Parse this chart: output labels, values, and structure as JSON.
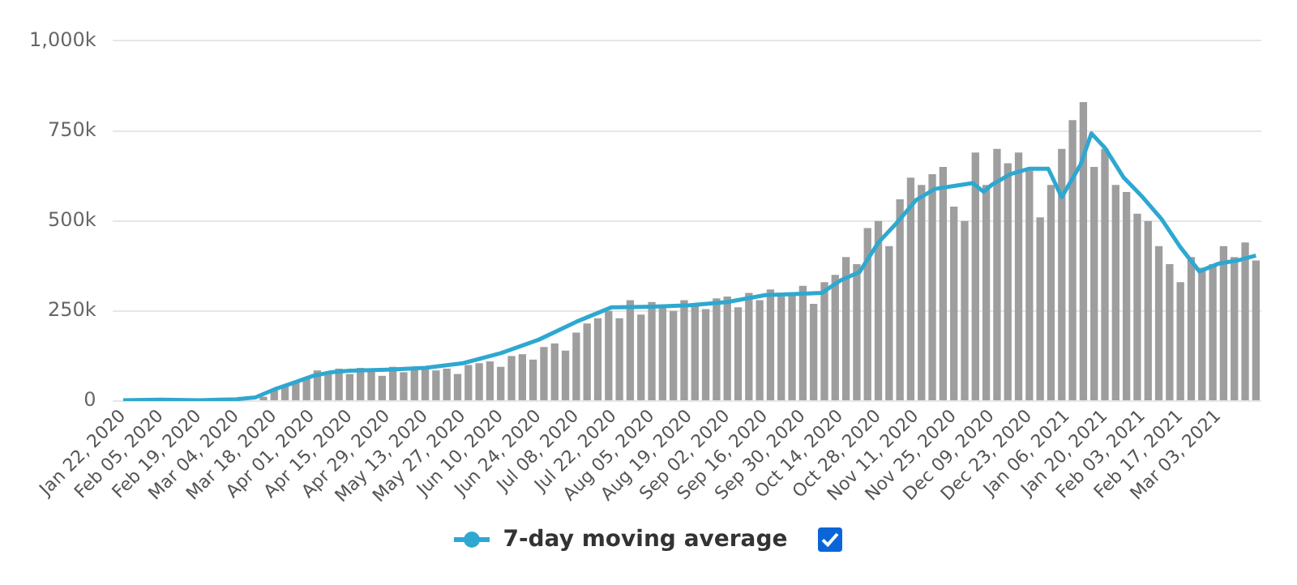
{
  "chart_data": {
    "type": "bar",
    "xlim": [
      "2020-01-18",
      "2021-03-19"
    ],
    "xticks": [
      {
        "value": "2020-01-22",
        "label": "Jan 22, 2020"
      },
      {
        "value": "2020-02-05",
        "label": "Feb 05, 2020"
      },
      {
        "value": "2020-02-19",
        "label": "Feb 19, 2020"
      },
      {
        "value": "2020-03-04",
        "label": "Mar 04, 2020"
      },
      {
        "value": "2020-03-18",
        "label": "Mar 18, 2020"
      },
      {
        "value": "2020-04-01",
        "label": "Apr 01, 2020"
      },
      {
        "value": "2020-04-15",
        "label": "Apr 15, 2020"
      },
      {
        "value": "2020-04-29",
        "label": "Apr 29, 2020"
      },
      {
        "value": "2020-05-13",
        "label": "May 13, 2020"
      },
      {
        "value": "2020-05-27",
        "label": "May 27, 2020"
      },
      {
        "value": "2020-06-10",
        "label": "Jun 10, 2020"
      },
      {
        "value": "2020-06-24",
        "label": "Jun 24, 2020"
      },
      {
        "value": "2020-07-08",
        "label": "Jul 08, 2020"
      },
      {
        "value": "2020-07-22",
        "label": "Jul 22, 2020"
      },
      {
        "value": "2020-08-05",
        "label": "Aug 05, 2020"
      },
      {
        "value": "2020-08-19",
        "label": "Aug 19, 2020"
      },
      {
        "value": "2020-09-02",
        "label": "Sep 02, 2020"
      },
      {
        "value": "2020-09-16",
        "label": "Sep 16, 2020"
      },
      {
        "value": "2020-09-30",
        "label": "Sep 30, 2020"
      },
      {
        "value": "2020-10-14",
        "label": "Oct 14, 2020"
      },
      {
        "value": "2020-10-28",
        "label": "Oct 28, 2020"
      },
      {
        "value": "2020-11-11",
        "label": "Nov 11, 2020"
      },
      {
        "value": "2020-11-25",
        "label": "Nov 25, 2020"
      },
      {
        "value": "2020-12-09",
        "label": "Dec 09, 2020"
      },
      {
        "value": "2020-12-23",
        "label": "Dec 23, 2020"
      },
      {
        "value": "2021-01-06",
        "label": "Jan 06, 2021"
      },
      {
        "value": "2021-01-20",
        "label": "Jan 20, 2021"
      },
      {
        "value": "2021-02-03",
        "label": "Feb 03, 2021"
      },
      {
        "value": "2021-02-17",
        "label": "Feb 17, 2021"
      },
      {
        "value": "2021-03-03",
        "label": "Mar 03, 2021"
      }
    ],
    "ylim": [
      0,
      1000000
    ],
    "yticks": [
      {
        "value": 0,
        "label": "0"
      },
      {
        "value": 250000,
        "label": "250k"
      },
      {
        "value": 500000,
        "label": "500k"
      },
      {
        "value": 750000,
        "label": "750k"
      },
      {
        "value": 1000000,
        "label": "1,000k"
      }
    ],
    "grid": "y",
    "legend": "bottom",
    "marker": "none",
    "line_style": "solid",
    "series": [
      {
        "color": "#9e9e9e",
        "x": [
          "2020-01-22",
          "2020-01-26",
          "2020-01-30",
          "2020-02-03",
          "2020-02-07",
          "2020-02-11",
          "2020-02-15",
          "2020-02-19",
          "2020-02-23",
          "2020-02-27",
          "2020-03-02",
          "2020-03-06",
          "2020-03-10",
          "2020-03-14",
          "2020-03-18",
          "2020-03-22",
          "2020-03-26",
          "2020-03-30",
          "2020-04-03",
          "2020-04-07",
          "2020-04-11",
          "2020-04-15",
          "2020-04-19",
          "2020-04-23",
          "2020-04-27",
          "2020-05-01",
          "2020-05-05",
          "2020-05-09",
          "2020-05-13",
          "2020-05-17",
          "2020-05-21",
          "2020-05-25",
          "2020-05-29",
          "2020-06-02",
          "2020-06-06",
          "2020-06-10",
          "2020-06-14",
          "2020-06-18",
          "2020-06-22",
          "2020-06-26",
          "2020-06-30",
          "2020-07-04",
          "2020-07-08",
          "2020-07-12",
          "2020-07-16",
          "2020-07-20",
          "2020-07-24",
          "2020-07-28",
          "2020-08-01",
          "2020-08-05",
          "2020-08-09",
          "2020-08-13",
          "2020-08-17",
          "2020-08-21",
          "2020-08-25",
          "2020-08-29",
          "2020-09-02",
          "2020-09-06",
          "2020-09-10",
          "2020-09-14",
          "2020-09-18",
          "2020-09-22",
          "2020-09-26",
          "2020-09-30",
          "2020-10-04",
          "2020-10-08",
          "2020-10-12",
          "2020-10-16",
          "2020-10-20",
          "2020-10-24",
          "2020-10-28",
          "2020-11-01",
          "2020-11-05",
          "2020-11-09",
          "2020-11-13",
          "2020-11-17",
          "2020-11-21",
          "2020-11-25",
          "2020-11-29",
          "2020-12-03",
          "2020-12-07",
          "2020-12-11",
          "2020-12-15",
          "2020-12-19",
          "2020-12-23",
          "2020-12-27",
          "2020-12-31",
          "2021-01-04",
          "2021-01-08",
          "2021-01-12",
          "2021-01-16",
          "2021-01-20",
          "2021-01-24",
          "2021-01-28",
          "2021-02-01",
          "2021-02-05",
          "2021-02-09",
          "2021-02-13",
          "2021-02-17",
          "2021-02-21",
          "2021-02-25",
          "2021-03-01",
          "2021-03-05",
          "2021-03-09",
          "2021-03-13",
          "2021-03-17"
        ],
        "values": [
          2000,
          3000,
          4000,
          5000,
          5000,
          5000,
          4000,
          3000,
          3000,
          2000,
          2000,
          4000,
          null,
          12000,
          30000,
          45000,
          55000,
          65000,
          85000,
          80000,
          90000,
          75000,
          92000,
          85000,
          70000,
          95000,
          80000,
          88000,
          95000,
          85000,
          90000,
          75000,
          100000,
          105000,
          110000,
          95000,
          125000,
          130000,
          115000,
          150000,
          160000,
          140000,
          190000,
          215000,
          230000,
          250000,
          230000,
          280000,
          240000,
          275000,
          265000,
          250000,
          280000,
          270000,
          255000,
          285000,
          290000,
          260000,
          300000,
          280000,
          310000,
          290000,
          300000,
          320000,
          270000,
          330000,
          350000,
          400000,
          380000,
          480000,
          500000,
          430000,
          560000,
          620000,
          600000,
          630000,
          650000,
          540000,
          500000,
          690000,
          600000,
          700000,
          660000,
          690000,
          640000,
          510000,
          600000,
          700000,
          780000,
          830000,
          650000,
          700000,
          600000,
          580000,
          520000,
          500000,
          430000,
          380000,
          330000,
          400000,
          370000,
          380000,
          430000,
          400000,
          440000,
          390000
        ]
      },
      {
        "type": "line",
        "name": "7-day moving average",
        "color": "#2ea8d0",
        "x": [
          "2020-01-22",
          "2020-02-05",
          "2020-02-19",
          "2020-03-04",
          "2020-03-11",
          "2020-03-18",
          "2020-03-25",
          "2020-04-01",
          "2020-04-08",
          "2020-04-15",
          "2020-04-29",
          "2020-05-13",
          "2020-05-27",
          "2020-06-10",
          "2020-06-24",
          "2020-07-08",
          "2020-07-21",
          "2020-08-05",
          "2020-08-19",
          "2020-09-02",
          "2020-09-16",
          "2020-09-30",
          "2020-10-07",
          "2020-10-14",
          "2020-10-21",
          "2020-10-28",
          "2020-11-04",
          "2020-11-11",
          "2020-11-18",
          "2020-11-25",
          "2020-12-02",
          "2020-12-06",
          "2020-12-09",
          "2020-12-16",
          "2020-12-23",
          "2020-12-30",
          "2021-01-04",
          "2021-01-11",
          "2021-01-15",
          "2021-01-20",
          "2021-01-27",
          "2021-02-03",
          "2021-02-10",
          "2021-02-17",
          "2021-02-24",
          "2021-03-03",
          "2021-03-10",
          "2021-03-17"
        ],
        "values": [
          2000,
          4000,
          2000,
          5000,
          10000,
          32000,
          50000,
          69000,
          80000,
          84000,
          87000,
          92000,
          105000,
          133000,
          170000,
          220000,
          260000,
          262000,
          266000,
          275000,
          294000,
          298000,
          300000,
          335000,
          358000,
          440000,
          496000,
          558000,
          589000,
          597000,
          605000,
          581000,
          600000,
          630000,
          645000,
          645000,
          566000,
          657000,
          743000,
          703000,
          620000,
          566000,
          505000,
          427000,
          360000,
          381000,
          390000,
          404000
        ]
      }
    ]
  }
}
